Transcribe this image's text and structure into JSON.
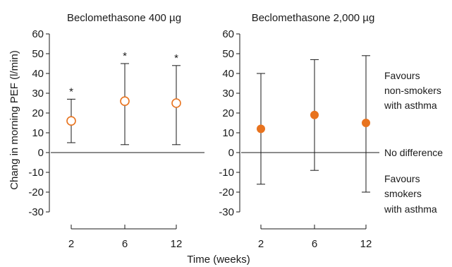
{
  "chart_data": {
    "type": "scatter",
    "ylabel": "Chang in morning PEF (l/min)",
    "xlabel": "Time (weeks)",
    "ylim": [
      -30,
      60
    ],
    "y_ticks": [
      "60",
      "50",
      "40",
      "30",
      "20",
      "10",
      "0",
      "-10",
      "-20",
      "-30"
    ],
    "x_ticks": [
      "2",
      "6",
      "12"
    ],
    "accent_color": "#e8731e",
    "panels": [
      {
        "title": "Beclomethasone 400 µg",
        "marker": "open",
        "points": [
          {
            "x": "2",
            "y": 16,
            "low": 5,
            "high": 27,
            "mark": "*"
          },
          {
            "x": "6",
            "y": 26,
            "low": 4,
            "high": 45,
            "mark": "*"
          },
          {
            "x": "12",
            "y": 25,
            "low": 4,
            "high": 44,
            "mark": "*"
          }
        ]
      },
      {
        "title": "Beclomethasone 2,000 µg",
        "marker": "filled",
        "points": [
          {
            "x": "2",
            "y": 12,
            "low": -16,
            "high": 40,
            "mark": ""
          },
          {
            "x": "6",
            "y": 19,
            "low": -9,
            "high": 47,
            "mark": ""
          },
          {
            "x": "12",
            "y": 15,
            "low": -20,
            "high": 49,
            "mark": ""
          }
        ]
      }
    ],
    "annotations": {
      "top": [
        "Favours",
        "non-smokers",
        "with asthma"
      ],
      "middle": "No difference",
      "bottom": [
        "Favours",
        "smokers",
        "with asthma"
      ]
    }
  }
}
